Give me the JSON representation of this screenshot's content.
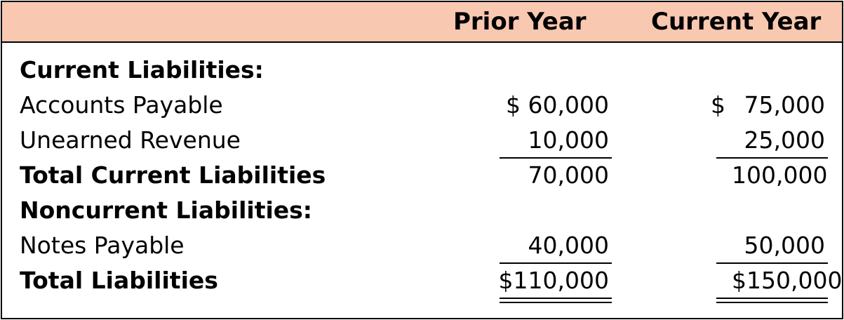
{
  "header": {
    "prior_year": "Prior Year",
    "current_year": "Current Year"
  },
  "rows": [
    {
      "label": "Current Liabilities:",
      "prior": "",
      "current": ""
    },
    {
      "label": "Accounts Payable",
      "prior": "$ 60,000",
      "current_sign": "$",
      "current": "75,000"
    },
    {
      "label": "Unearned Revenue",
      "prior": "10,000",
      "current": "25,000"
    },
    {
      "label": "Total Current Liabilities",
      "prior": "70,000",
      "current": "100,000"
    },
    {
      "label": "Noncurrent Liabilities:",
      "prior": "",
      "current": ""
    },
    {
      "label": "Notes Payable",
      "prior": "40,000",
      "current": "50,000"
    },
    {
      "label": "Total Liabilities",
      "prior": "$110,000",
      "current": "$150,000"
    }
  ],
  "colors": {
    "header_background": "#f9c8b0",
    "border": "#000000"
  }
}
